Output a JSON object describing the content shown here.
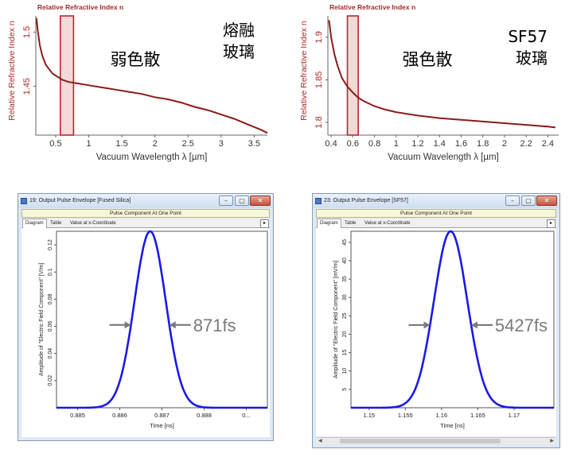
{
  "chart_data": [
    {
      "type": "line",
      "title": "Relative Refractive Index n",
      "ylabel": "Relative Refractive Index n",
      "xlabel": "Vacuum Wavelength λ [µm]",
      "xlim": [
        0.2,
        3.7
      ],
      "ylim": [
        1.405,
        1.515
      ],
      "xticks": [
        {
          "v": 0.5,
          "label": "0.5"
        },
        {
          "v": 1,
          "label": "1"
        },
        {
          "v": 1.5,
          "label": "1.5"
        },
        {
          "v": 2,
          "label": "2"
        },
        {
          "v": 2.5,
          "label": "2.5"
        },
        {
          "v": 3,
          "label": "3"
        },
        {
          "v": 3.5,
          "label": "3.5"
        }
      ],
      "yticks": [
        {
          "v": 1.45,
          "label": "1.45"
        },
        {
          "v": 1.5,
          "label": "1.5"
        }
      ],
      "annotation_main": "弱色散",
      "annotation_material": [
        "熔融",
        "玻璃"
      ],
      "highlight_band": [
        0.57,
        0.77
      ],
      "series": [
        {
          "color": "#8b1a1a",
          "x": [
            0.21,
            0.23,
            0.26,
            0.3,
            0.35,
            0.4,
            0.45,
            0.5,
            0.55,
            0.6,
            0.7,
            0.8,
            0.9,
            1.0,
            1.2,
            1.4,
            1.6,
            1.8,
            2.0,
            2.2,
            2.4,
            2.6,
            2.8,
            3.0,
            3.2,
            3.4,
            3.6,
            3.7
          ],
          "y": [
            1.513,
            1.501,
            1.488,
            1.478,
            1.47,
            1.466,
            1.462,
            1.46,
            1.458,
            1.456,
            1.454,
            1.453,
            1.452,
            1.451,
            1.449,
            1.447,
            1.445,
            1.443,
            1.44,
            1.438,
            1.435,
            1.431,
            1.428,
            1.424,
            1.42,
            1.415,
            1.41,
            1.407
          ]
        }
      ]
    },
    {
      "type": "line",
      "title": "Relative Refractive Index n",
      "ylabel": "Relative Refractive Index n",
      "xlabel": "Vacuum Wavelength λ [µm]",
      "xlim": [
        0.37,
        2.5
      ],
      "ylim": [
        1.785,
        1.925
      ],
      "xticks": [
        {
          "v": 0.4,
          "label": "0.4"
        },
        {
          "v": 0.6,
          "label": "0.6"
        },
        {
          "v": 0.8,
          "label": "0.8"
        },
        {
          "v": 1.0,
          "label": "1"
        },
        {
          "v": 1.2,
          "label": "1.2"
        },
        {
          "v": 1.4,
          "label": "1.4"
        },
        {
          "v": 1.6,
          "label": "1.6"
        },
        {
          "v": 1.8,
          "label": "1.8"
        },
        {
          "v": 2.0,
          "label": "2"
        },
        {
          "v": 2.2,
          "label": "2.2"
        },
        {
          "v": 2.4,
          "label": "2.4"
        }
      ],
      "yticks": [
        {
          "v": 1.8,
          "label": "1.8"
        },
        {
          "v": 1.85,
          "label": "1.85"
        },
        {
          "v": 1.9,
          "label": "1.9"
        }
      ],
      "annotation_main": "强色散",
      "annotation_material": [
        "SF57",
        "玻璃"
      ],
      "highlight_band": [
        0.55,
        0.65
      ],
      "series": [
        {
          "color": "#8b1a1a",
          "x": [
            0.38,
            0.4,
            0.43,
            0.46,
            0.5,
            0.55,
            0.6,
            0.65,
            0.7,
            0.8,
            0.9,
            1.0,
            1.2,
            1.4,
            1.6,
            1.8,
            2.0,
            2.2,
            2.4,
            2.47
          ],
          "y": [
            1.92,
            1.9,
            1.88,
            1.866,
            1.852,
            1.842,
            1.835,
            1.829,
            1.825,
            1.819,
            1.815,
            1.812,
            1.808,
            1.805,
            1.803,
            1.801,
            1.799,
            1.797,
            1.795,
            1.794
          ]
        }
      ]
    },
    {
      "type": "line",
      "window_title": "19: Output Pulse Envelope [Fused Silica]",
      "subtitle": "Pulse Component At One Point",
      "tabs": [
        "Diagram",
        "Table",
        "Value at x-Coordinate"
      ],
      "ylabel": "Amplitude of \"Electric Field Component\" [V/m]",
      "xlabel": "Time [ns]",
      "xlim": [
        0.8845,
        0.8895
      ],
      "ylim": [
        0,
        0.13
      ],
      "xticks": [
        {
          "v": 0.885,
          "label": "0.885"
        },
        {
          "v": 0.886,
          "label": "0.886"
        },
        {
          "v": 0.887,
          "label": "0.887"
        },
        {
          "v": 0.888,
          "label": "0.888"
        },
        {
          "v": 0.889,
          "label": "0..."
        }
      ],
      "yticks": [
        {
          "v": 0.02,
          "label": "0.02"
        },
        {
          "v": 0.04,
          "label": "0.04"
        },
        {
          "v": 0.06,
          "label": "0.06"
        },
        {
          "v": 0.08,
          "label": "0.08"
        },
        {
          "v": 0.1,
          "label": "0.1"
        },
        {
          "v": 0.12,
          "label": "0.12"
        }
      ],
      "pulse": {
        "center": 0.88672,
        "amplitude": 0.13,
        "fwhm": 0.000871
      },
      "width_label": "871fs",
      "arrow_y": 0.061,
      "series": [
        {
          "color": "#1a1ae6"
        }
      ]
    },
    {
      "type": "line",
      "window_title": "23: Output Pulse Envelope [SF57]",
      "subtitle": "Pulse Component At One Point",
      "tabs": [
        "Diagram",
        "Table",
        "Value at x-Coordinate"
      ],
      "ylabel": "Amplitude of \"Electric Field Component\" [mV/m]",
      "xlabel": "Time [ns]",
      "xlim": [
        1.1475,
        1.1755
      ],
      "ylim": [
        0,
        48
      ],
      "xticks": [
        {
          "v": 1.15,
          "label": "1.15"
        },
        {
          "v": 1.155,
          "label": "1.155"
        },
        {
          "v": 1.16,
          "label": "1.16"
        },
        {
          "v": 1.165,
          "label": "1.165"
        },
        {
          "v": 1.17,
          "label": "1.17"
        }
      ],
      "yticks": [
        {
          "v": 5,
          "label": "5"
        },
        {
          "v": 10,
          "label": "10"
        },
        {
          "v": 15,
          "label": "15"
        },
        {
          "v": 20,
          "label": "20"
        },
        {
          "v": 25,
          "label": "25"
        },
        {
          "v": 30,
          "label": "30"
        },
        {
          "v": 35,
          "label": "35"
        },
        {
          "v": 40,
          "label": "40"
        },
        {
          "v": 45,
          "label": "45"
        }
      ],
      "pulse": {
        "center": 1.16125,
        "amplitude": 48,
        "fwhm": 0.005427
      },
      "width_label": "5427fs",
      "arrow_y": 22.5,
      "series": [
        {
          "color": "#1a1ae6"
        }
      ]
    }
  ]
}
